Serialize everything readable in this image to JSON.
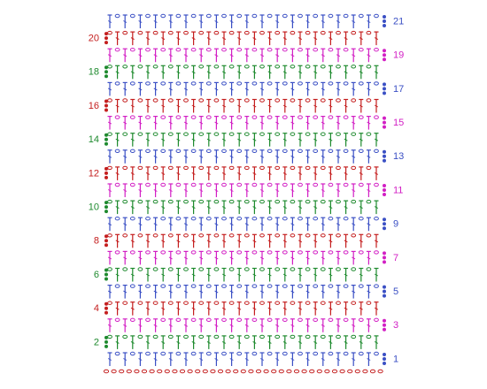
{
  "rows": [
    {
      "label": "1"
    },
    {
      "label": "2"
    },
    {
      "label": "3"
    },
    {
      "label": "4"
    },
    {
      "label": "5"
    },
    {
      "label": "6"
    },
    {
      "label": "7"
    },
    {
      "label": "8"
    },
    {
      "label": "9"
    },
    {
      "label": "10"
    },
    {
      "label": "11"
    },
    {
      "label": "12"
    },
    {
      "label": "13"
    },
    {
      "label": "14"
    },
    {
      "label": "15"
    },
    {
      "label": "16"
    },
    {
      "label": "17"
    },
    {
      "label": "18"
    },
    {
      "label": "19"
    },
    {
      "label": "20"
    },
    {
      "label": "21"
    }
  ]
}
